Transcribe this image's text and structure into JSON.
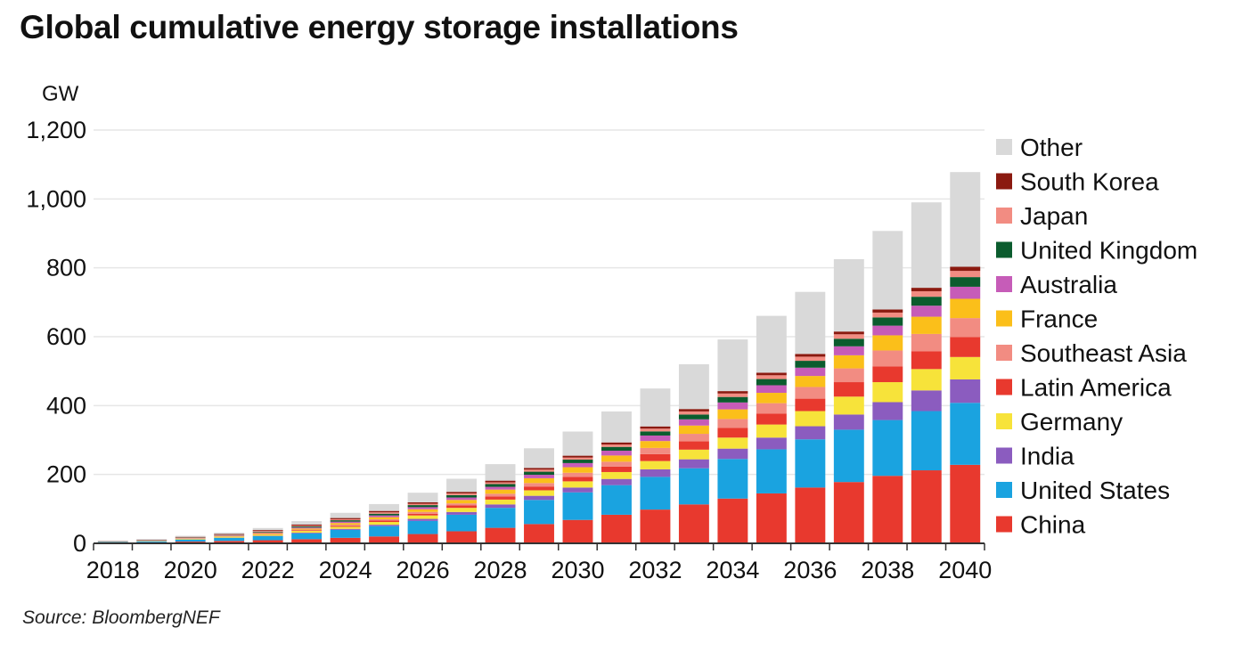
{
  "title": "Global cumulative energy storage installations",
  "source": "Source: BloombergNEF",
  "chart_data": {
    "type": "bar",
    "stacked": true,
    "title": "Global cumulative energy storage installations",
    "ylabel": "GW",
    "xlabel": "",
    "ylim": [
      0,
      1200
    ],
    "yticks": [
      0,
      200,
      400,
      600,
      800,
      1000,
      1200
    ],
    "ytick_labels": [
      "0",
      "200",
      "400",
      "600",
      "800",
      "1,000",
      "1,200"
    ],
    "grid": "horizontal",
    "legend_position": "right",
    "categories": [
      "2018",
      "2019",
      "2020",
      "2021",
      "2022",
      "2023",
      "2024",
      "2025",
      "2026",
      "2027",
      "2028",
      "2029",
      "2030",
      "2031",
      "2032",
      "2033",
      "2034",
      "2035",
      "2036",
      "2037",
      "2038",
      "2039",
      "2040"
    ],
    "xtick_labels": [
      "2018",
      "2020",
      "2022",
      "2024",
      "2026",
      "2028",
      "2030",
      "2032",
      "2034",
      "2036",
      "2038",
      "2040"
    ],
    "series": [
      {
        "name": "China",
        "color": "#e8392e",
        "values": [
          2,
          3,
          5,
          7,
          9,
          12,
          16,
          20,
          27,
          35,
          45,
          56,
          68,
          83,
          98,
          113,
          130,
          145,
          162,
          178,
          196,
          212,
          228
        ]
      },
      {
        "name": "United States",
        "color": "#1aa3e0",
        "values": [
          2,
          3,
          6,
          9,
          12,
          17,
          23,
          30,
          38,
          48,
          58,
          70,
          80,
          86,
          95,
          105,
          115,
          128,
          140,
          152,
          162,
          172,
          180
        ]
      },
      {
        "name": "India",
        "color": "#8b5cbf",
        "values": [
          0.1,
          0.2,
          0.3,
          0.5,
          1,
          2,
          3,
          4,
          6,
          8,
          10,
          12,
          14,
          18,
          22,
          26,
          30,
          34,
          38,
          44,
          52,
          60,
          68
        ]
      },
      {
        "name": "Germany",
        "color": "#f7e33a",
        "values": [
          0.5,
          1,
          2,
          3,
          4,
          5,
          6,
          8,
          10,
          12,
          14,
          16,
          18,
          20,
          24,
          28,
          32,
          38,
          44,
          52,
          58,
          62,
          65
        ]
      },
      {
        "name": "Latin America",
        "color": "#e8392e",
        "values": [
          0.1,
          0.2,
          0.3,
          0.5,
          1,
          2,
          3,
          4,
          5,
          7,
          9,
          11,
          13,
          16,
          20,
          24,
          28,
          32,
          36,
          42,
          46,
          52,
          58
        ]
      },
      {
        "name": "Southeast Asia",
        "color": "#f28c82",
        "values": [
          0.1,
          0.2,
          0.3,
          0.5,
          1,
          2,
          3,
          4,
          5,
          6,
          8,
          10,
          12,
          14,
          18,
          22,
          26,
          30,
          34,
          40,
          46,
          50,
          55
        ]
      },
      {
        "name": "France",
        "color": "#fbbf1a",
        "values": [
          0.2,
          0.4,
          0.8,
          1,
          2,
          3,
          5,
          6,
          8,
          10,
          12,
          14,
          16,
          18,
          20,
          24,
          28,
          30,
          32,
          38,
          44,
          50,
          56
        ]
      },
      {
        "name": "Australia",
        "color": "#c65cb8",
        "values": [
          0.3,
          0.6,
          1,
          1.5,
          2,
          3,
          4,
          5,
          6,
          7,
          8,
          10,
          12,
          14,
          16,
          18,
          20,
          22,
          24,
          26,
          28,
          32,
          35
        ]
      },
      {
        "name": "United Kingdom",
        "color": "#0b5c2e",
        "values": [
          0.3,
          0.5,
          0.8,
          1,
          2,
          3,
          4,
          5,
          6,
          7,
          8,
          9,
          10,
          11,
          12,
          14,
          16,
          18,
          20,
          22,
          24,
          26,
          28
        ]
      },
      {
        "name": "Japan",
        "color": "#f28c82",
        "values": [
          0.3,
          0.5,
          0.8,
          1,
          2,
          2.5,
          3,
          4,
          4,
          5,
          5,
          6,
          6,
          7,
          8,
          9,
          10,
          11,
          12,
          13,
          14,
          16,
          18
        ]
      },
      {
        "name": "South Korea",
        "color": "#8b1a10",
        "values": [
          0.5,
          1,
          1.5,
          2,
          2.5,
          3,
          3.5,
          4,
          4,
          4.5,
          5,
          5,
          5.5,
          6,
          6.5,
          7,
          7,
          7.5,
          8,
          8,
          9,
          10,
          12
        ]
      },
      {
        "name": "Other",
        "color": "#d9d9d9",
        "values": [
          1,
          2,
          3,
          4,
          6,
          10,
          15,
          20,
          28,
          38,
          48,
          57,
          70,
          90,
          110,
          130,
          150,
          165,
          180,
          210,
          228,
          248,
          275
        ]
      }
    ]
  }
}
